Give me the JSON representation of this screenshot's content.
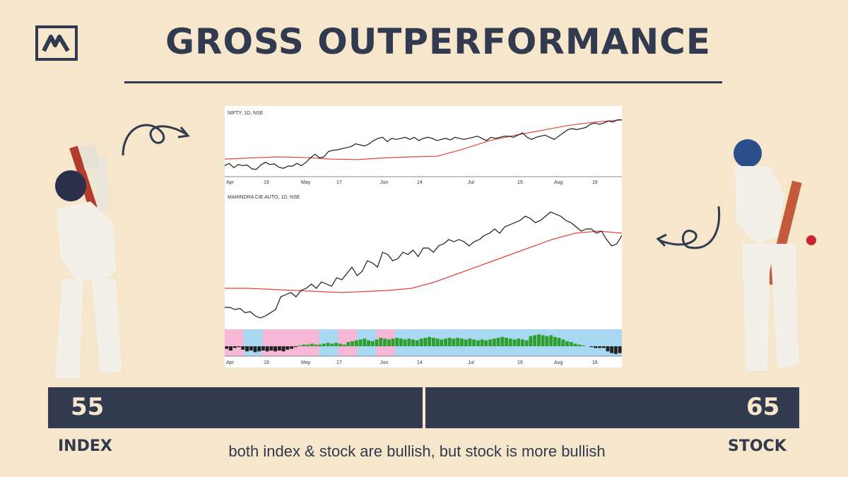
{
  "title": "GROSS OUTPERFORMANCE",
  "caption": "both index & stock are bullish, but stock is more bullish",
  "scores": {
    "index_value": "55",
    "stock_value": "65",
    "index_label": "INDEX",
    "stock_label": "STOCK"
  },
  "colors": {
    "navy": "#323a4f",
    "background": "#f5e6cc",
    "ma_red": "#e2453c",
    "price_black": "#1a1a1a",
    "bar_green": "#2e9e2e",
    "bar_dark": "#222222",
    "zone_blue": "#a9d9f2",
    "zone_pink": "#f7b8d8"
  },
  "icons": [
    "logo-mark",
    "curly-arrow-icon",
    "batsman-left-figure",
    "batsman-right-figure"
  ],
  "chart_data": [
    {
      "type": "line",
      "title": "NIFTY, 1D, NSE",
      "x_tick_labels": [
        "Apr",
        "19",
        "May",
        "17",
        "Jun",
        "14",
        "Jul",
        "19",
        "Aug",
        "16"
      ],
      "series": [
        {
          "values": [
            0.1,
            0.14,
            0.06,
            0.12,
            0.1,
            0.11,
            0.04,
            0.03,
            0.11,
            0.16,
            0.12,
            0.13,
            0.07,
            0.05,
            0.09,
            0.09,
            0.14,
            0.1,
            0.16,
            0.24,
            0.31,
            0.24,
            0.26,
            0.36,
            0.38,
            0.39,
            0.41,
            0.43,
            0.45,
            0.5,
            0.48,
            0.46,
            0.5,
            0.56,
            0.6,
            0.62,
            0.54,
            0.6,
            0.58,
            0.6,
            0.62,
            0.58,
            0.62,
            0.56,
            0.6,
            0.62,
            0.6,
            0.56,
            0.58,
            0.6,
            0.57,
            0.62,
            0.6,
            0.58,
            0.6,
            0.62,
            0.64,
            0.6,
            0.56,
            0.62,
            0.6,
            0.62,
            0.64,
            0.64,
            0.62,
            0.66,
            0.7,
            0.62,
            0.58,
            0.62,
            0.64,
            0.66,
            0.62,
            0.58,
            0.64,
            0.7,
            0.76,
            0.78,
            0.76,
            0.78,
            0.8,
            0.86,
            0.88,
            0.86,
            0.88,
            0.92,
            0.9,
            0.94,
            0.94
          ]
        },
        {
          "values": [
            0.22,
            0.24,
            0.26,
            0.25,
            0.22,
            0.21,
            0.24,
            0.26,
            0.27,
            0.4,
            0.56,
            0.66,
            0.75,
            0.84,
            0.9,
            0.94
          ]
        }
      ]
    },
    {
      "type": "line",
      "title": "MAHINDRA CIE AUTO, 1D, NSE",
      "x_tick_labels": [
        "Apr",
        "19",
        "May",
        "17",
        "Jun",
        "14",
        "Jul",
        "19",
        "Aug",
        "16"
      ],
      "series": [
        {
          "values": [
            0.1,
            0.1,
            0.08,
            0.09,
            0.05,
            0.06,
            0.02,
            0.0,
            0.02,
            0.05,
            0.08,
            0.2,
            0.22,
            0.24,
            0.2,
            0.26,
            0.28,
            0.32,
            0.28,
            0.34,
            0.32,
            0.3,
            0.38,
            0.36,
            0.42,
            0.48,
            0.4,
            0.44,
            0.54,
            0.52,
            0.48,
            0.62,
            0.6,
            0.54,
            0.56,
            0.62,
            0.6,
            0.64,
            0.58,
            0.66,
            0.66,
            0.62,
            0.68,
            0.7,
            0.74,
            0.72,
            0.74,
            0.72,
            0.68,
            0.72,
            0.74,
            0.78,
            0.8,
            0.84,
            0.8,
            0.86,
            0.88,
            0.9,
            0.92,
            0.96,
            0.94,
            0.9,
            0.92,
            0.96,
            1.0,
            0.98,
            0.96,
            0.92,
            0.9,
            0.86,
            0.82,
            0.84,
            0.84,
            0.8,
            0.82,
            0.74,
            0.68,
            0.7,
            0.78
          ]
        },
        {
          "values": [
            0.28,
            0.28,
            0.27,
            0.26,
            0.25,
            0.24,
            0.25,
            0.26,
            0.28,
            0.34,
            0.42,
            0.5,
            0.58,
            0.66,
            0.74,
            0.8,
            0.82,
            0.8
          ]
        }
      ]
    },
    {
      "type": "bar",
      "title": "",
      "x_tick_labels": [
        "Apr",
        "19",
        "May",
        "17",
        "Jun",
        "14",
        "Jul",
        "19",
        "Aug",
        "16"
      ],
      "values": [
        -0.3,
        -0.5,
        -0.2,
        -0.1,
        -0.4,
        -0.6,
        -0.5,
        -0.7,
        -0.6,
        -0.5,
        -0.6,
        -0.5,
        -0.6,
        -0.5,
        -0.6,
        -0.4,
        -0.3,
        -0.1,
        0.1,
        0.2,
        0.2,
        0.3,
        0.2,
        0.2,
        0.3,
        0.4,
        0.3,
        0.4,
        0.3,
        0.2,
        0.5,
        0.6,
        0.7,
        0.8,
        0.9,
        0.7,
        0.6,
        0.8,
        1.0,
        0.9,
        0.8,
        0.9,
        1.0,
        0.9,
        0.8,
        0.9,
        0.8,
        0.7,
        0.9,
        1.0,
        1.1,
        1.0,
        0.9,
        0.8,
        0.9,
        1.0,
        0.9,
        1.0,
        0.9,
        0.8,
        0.9,
        0.8,
        0.7,
        0.8,
        0.7,
        0.8,
        0.9,
        1.0,
        1.1,
        1.0,
        0.9,
        0.8,
        0.9,
        0.8,
        0.7,
        1.2,
        1.3,
        1.4,
        1.3,
        1.2,
        1.3,
        1.1,
        1.0,
        0.8,
        0.6,
        0.5,
        0.3,
        0.2,
        0.1,
        0.0,
        -0.1,
        -0.2,
        -0.2,
        -0.2,
        -0.6,
        -0.8,
        -0.9,
        -0.8
      ],
      "zones": [
        "pink",
        "blue",
        "pink",
        "pink",
        "pink",
        "blue",
        "pink",
        "blue",
        "pink",
        "blue",
        "blue",
        "blue",
        "blue",
        "blue",
        "blue",
        "blue",
        "blue",
        "blue",
        "blue",
        "blue",
        "blue"
      ]
    }
  ]
}
